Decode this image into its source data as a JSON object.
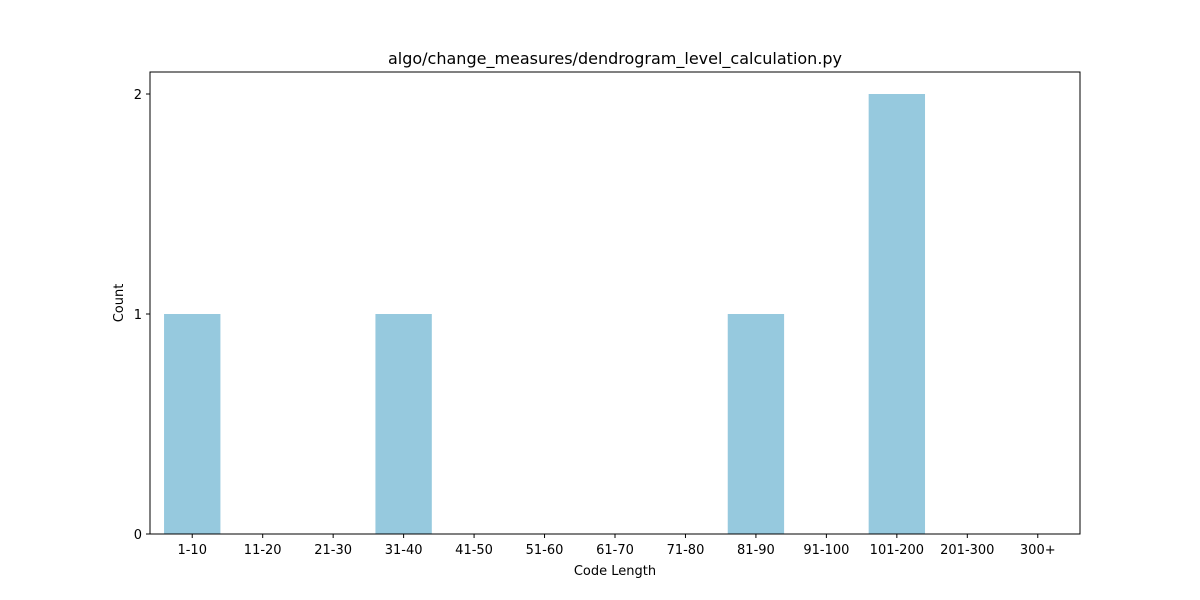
{
  "chart_data": {
    "type": "bar",
    "title": "algo/change_measures/dendrogram_level_calculation.py",
    "xlabel": "Code Length",
    "ylabel": "Count",
    "categories": [
      "1-10",
      "11-20",
      "21-30",
      "31-40",
      "41-50",
      "51-60",
      "61-70",
      "71-80",
      "81-90",
      "91-100",
      "101-200",
      "201-300",
      "300+"
    ],
    "values": [
      1,
      0,
      0,
      1,
      0,
      0,
      0,
      0,
      1,
      0,
      2,
      0,
      0
    ],
    "ylim": [
      0,
      2
    ],
    "yticks": [
      "0",
      "1",
      "2"
    ],
    "grid": false,
    "legend": "none",
    "bar_color": "#96c9de"
  }
}
